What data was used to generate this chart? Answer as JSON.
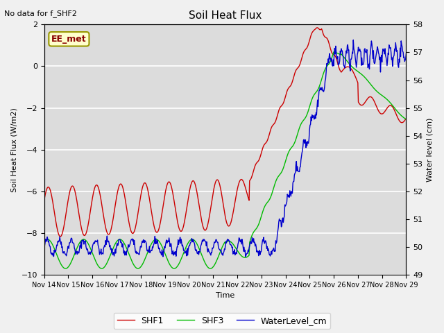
{
  "title": "Soil Heat Flux",
  "note": "No data for f_SHF2",
  "ylabel_left": "Soil Heat Flux (W/m2)",
  "ylabel_right": "Water level (cm)",
  "xlabel": "Time",
  "ylim_left": [
    -10,
    2
  ],
  "ylim_right": [
    49.0,
    58.0
  ],
  "yticks_left": [
    -10,
    -8,
    -6,
    -4,
    -2,
    0,
    2
  ],
  "yticks_right": [
    49.0,
    50.0,
    51.0,
    52.0,
    53.0,
    54.0,
    55.0,
    56.0,
    57.0,
    58.0
  ],
  "xtick_labels": [
    "Nov 14",
    "Nov 15",
    "Nov 16",
    "Nov 17",
    "Nov 18",
    "Nov 19",
    "Nov 20",
    "Nov 21",
    "Nov 22",
    "Nov 23",
    "Nov 24",
    "Nov 25",
    "Nov 26",
    "Nov 27",
    "Nov 28",
    "Nov 29"
  ],
  "colors": {
    "SHF1": "#cc0000",
    "SHF3": "#00bb00",
    "WaterLevel": "#0000cc",
    "background": "#dcdcdc",
    "grid": "#ffffff",
    "annotation_bg": "#ffffcc",
    "annotation_border": "#999900"
  },
  "annotation_text": "EE_met",
  "legend_entries": [
    "SHF1",
    "SHF3",
    "WaterLevel_cm"
  ],
  "figsize": [
    6.4,
    4.8
  ],
  "dpi": 100
}
